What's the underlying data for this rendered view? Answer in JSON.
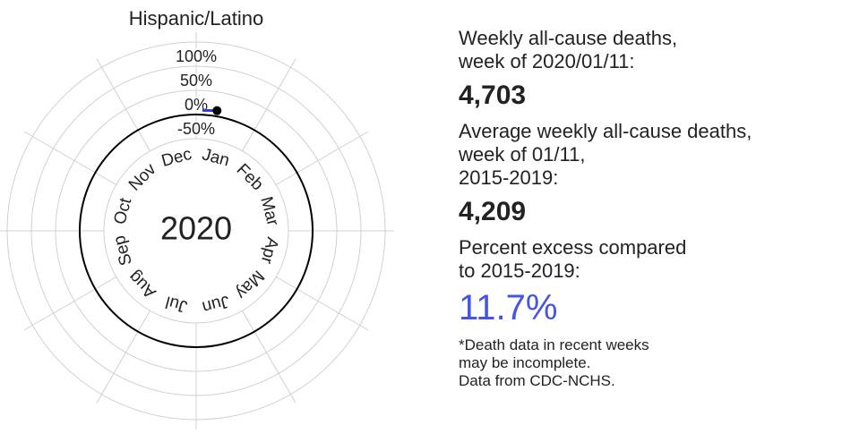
{
  "chart_data": {
    "type": "polar",
    "title": "Hispanic/Latino",
    "center_label": "2020",
    "categories": [
      "Jan",
      "Feb",
      "Mar",
      "Apr",
      "May",
      "Jun",
      "Jul",
      "Aug",
      "Sep",
      "Oct",
      "Nov",
      "Dec"
    ],
    "rlim": [
      -50,
      150
    ],
    "rticks": [
      {
        "value": -50,
        "label": "-50%"
      },
      {
        "value": 0,
        "label": "0%"
      },
      {
        "value": 50,
        "label": "50%"
      },
      {
        "value": 100,
        "label": "100%"
      }
    ],
    "grid": true,
    "series": [
      {
        "color": "#3a3ad6",
        "x": [
          "2020/01/04",
          "2020/01/11"
        ],
        "values": [
          9,
          11.7
        ]
      }
    ]
  },
  "panel": {
    "deaths_label": [
      "Weekly all-cause deaths,",
      "week of 2020/01/11:"
    ],
    "deaths": "4,703",
    "average_label": [
      "Average weekly all-cause deaths,",
      "week of 01/11,",
      "2015-2019:"
    ],
    "average": "4,209",
    "excess_label": [
      "Percent excess compared",
      "to 2015-2019:"
    ],
    "excess": "11.7%",
    "notes": [
      "*Death data in recent weeks",
      "may be incomplete.",
      "Data from CDC-NCHS."
    ]
  }
}
